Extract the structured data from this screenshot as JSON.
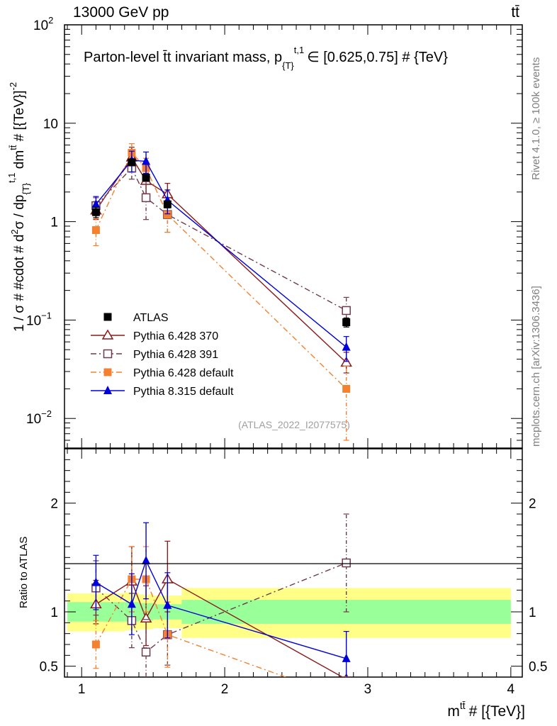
{
  "header": {
    "left": "13000 GeV pp",
    "right": "tt̄"
  },
  "side": {
    "rivet": "Rivet 4.1.0, ≥ 100k events",
    "mcplots": "mcplots.cern.ch [arXiv:1306.3436]"
  },
  "chart_data": {
    "type": "line",
    "title": "Parton-level t̄t invariant mass, p_{T}^{t,1} ∈ [0.625,0.75] # {TeV}",
    "title_main": "Parton-level t̄t invariant mass, p",
    "title_sub": "{T}",
    "title_sup": "t,1",
    "title_tail": "∈ [0.625,0.75] # {TeV}",
    "watermark": "(ATLAS_2022_I2077575)",
    "xlabel": "m^{tt̄} # [{TeV}]",
    "xlabel_main": "m",
    "xlabel_sup": "tt̄",
    "xlabel_tail": "# [{TeV}]",
    "ylabel": "1 / σ # #cdot # d²σ / dp_{T}^{t,1} dm^{tt̄} # [{TeV}]⁻²",
    "ylabel_parts": {
      "a": "1 / σ # #cdot # d",
      "b": "2",
      "c": "σ / dp",
      "d": "{T}",
      "e": "t,1",
      "f": " dm",
      "g": "tt̄",
      "h": " # [{TeV}]",
      "i": "-2"
    },
    "ratio_ylabel": "Ratio to ATLAS",
    "xlim": [
      0.88,
      4.08
    ],
    "ylim": [
      0.005,
      100
    ],
    "ratio_ylim": [
      0.4,
      2.5
    ],
    "x_ticks": [
      {
        "v": 1,
        "label": "1"
      },
      {
        "v": 2,
        "label": "2"
      },
      {
        "v": 3,
        "label": "3"
      },
      {
        "v": 4,
        "label": "4"
      }
    ],
    "y_ticks": [
      {
        "v": 100,
        "base": "10",
        "exp": "2"
      },
      {
        "v": 10,
        "base": "10",
        "exp": ""
      },
      {
        "v": 1,
        "base": "1",
        "exp": ""
      },
      {
        "v": 0.1,
        "base": "10",
        "exp": "−1"
      },
      {
        "v": 0.01,
        "base": "10",
        "exp": "−2"
      }
    ],
    "ratio_ticks": [
      {
        "v": 0.5,
        "label": "0.5"
      },
      {
        "v": 1,
        "label": "1"
      },
      {
        "v": 2,
        "label": "2"
      }
    ],
    "bands": [
      {
        "x0": 0.9,
        "x1": 1.3,
        "yellow": [
          0.82,
          1.17
        ],
        "green": [
          0.91,
          1.09
        ]
      },
      {
        "x0": 1.3,
        "x1": 1.4,
        "yellow": [
          0.83,
          1.18
        ],
        "green": [
          0.91,
          1.09
        ]
      },
      {
        "x0": 1.4,
        "x1": 1.5,
        "yellow": [
          0.84,
          1.16
        ],
        "green": [
          0.92,
          1.08
        ]
      },
      {
        "x0": 1.5,
        "x1": 1.7,
        "yellow": [
          0.85,
          1.15
        ],
        "green": [
          0.93,
          1.07
        ]
      },
      {
        "x0": 1.7,
        "x1": 4.0,
        "yellow": [
          0.76,
          1.22
        ],
        "green": [
          0.89,
          1.11
        ]
      }
    ],
    "series": [
      {
        "name": "ATLAS",
        "color": "#000000",
        "marker": "square-filled",
        "line": "none",
        "x": [
          1.1,
          1.35,
          1.45,
          1.6,
          2.85
        ],
        "y": [
          1.25,
          4.0,
          2.8,
          1.5,
          0.095
        ],
        "err_lo": [
          0.15,
          0.3,
          0.2,
          0.12,
          0.01
        ],
        "err_hi": [
          0.15,
          0.3,
          0.2,
          0.12,
          0.01
        ],
        "ratio": [
          1,
          1,
          1,
          1,
          1
        ]
      },
      {
        "name": "Pythia 6.428 370",
        "color": "#8b1a1a",
        "marker": "triangle-open",
        "line": "solid",
        "x": [
          1.1,
          1.35,
          1.45,
          1.6,
          2.85
        ],
        "y": [
          1.3,
          4.5,
          2.6,
          1.9,
          0.037
        ],
        "err_lo": [
          0.25,
          1.0,
          0.7,
          0.45,
          0.008
        ],
        "err_hi": [
          0.3,
          1.2,
          0.8,
          0.55,
          0.01
        ],
        "ratio": [
          1.07,
          1.28,
          0.94,
          1.3,
          0.38
        ],
        "ratio_lo": [
          0.18,
          0.28,
          0.25,
          0.3,
          0.02
        ],
        "ratio_hi": [
          0.22,
          0.32,
          0.3,
          0.35,
          0.02
        ]
      },
      {
        "name": "Pythia 6.428 391",
        "color": "#6e3a4f",
        "marker": "square-open",
        "line": "dashdot",
        "x": [
          1.1,
          1.35,
          1.45,
          1.6,
          2.85
        ],
        "y": [
          1.45,
          3.5,
          1.75,
          1.18,
          0.125
        ],
        "err_lo": [
          0.3,
          0.8,
          0.7,
          0.4,
          0.04
        ],
        "err_hi": [
          0.3,
          0.9,
          0.8,
          0.4,
          0.045
        ],
        "ratio": [
          1.22,
          0.92,
          0.63,
          0.79,
          1.45
        ],
        "ratio_lo": [
          0.25,
          0.25,
          0.3,
          0.28,
          0.45
        ],
        "ratio_hi": [
          0.25,
          0.25,
          0.3,
          0.3,
          0.45
        ]
      },
      {
        "name": "Pythia 6.428 default",
        "color": "#f4812f",
        "marker": "square-filled",
        "line": "dashdot",
        "x": [
          1.1,
          1.35,
          1.45,
          1.6,
          2.85
        ],
        "y": [
          0.82,
          5.0,
          3.5,
          1.18,
          0.02
        ],
        "err_lo": [
          0.25,
          1.2,
          0.9,
          0.4,
          0.014
        ],
        "err_hi": [
          0.25,
          1.2,
          0.9,
          0.4,
          0.014
        ],
        "ratio": [
          0.7,
          1.3,
          1.3,
          0.79,
          0.2
        ],
        "ratio_lo": [
          0.22,
          0.3,
          0.3,
          0.3,
          0.15
        ],
        "ratio_hi": [
          0.22,
          0.3,
          0.3,
          0.3,
          0.15
        ]
      },
      {
        "name": "Pythia 8.315 default",
        "color": "#0000dd",
        "marker": "triangle-filled",
        "line": "solid",
        "x": [
          1.1,
          1.35,
          1.45,
          1.6,
          2.85
        ],
        "y": [
          1.5,
          4.2,
          4.1,
          1.65,
          0.053
        ],
        "err_lo": [
          0.3,
          1.0,
          1.0,
          0.45,
          0.015
        ],
        "err_hi": [
          0.3,
          1.0,
          1.0,
          0.45,
          0.015
        ],
        "ratio": [
          1.27,
          1.07,
          1.47,
          1.06,
          0.57
        ],
        "ratio_lo": [
          0.25,
          0.28,
          0.35,
          0.3,
          0.22
        ],
        "ratio_hi": [
          0.25,
          0.28,
          0.35,
          0.3,
          0.25
        ]
      }
    ]
  }
}
